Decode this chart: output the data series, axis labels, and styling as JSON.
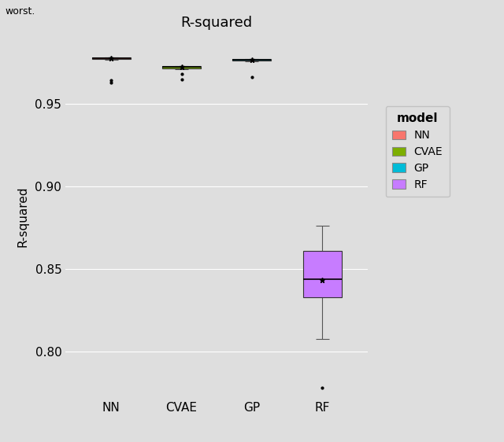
{
  "title": "R-squared",
  "ylabel": "R-squared",
  "xlabel": "",
  "background_color": "#DEDEDE",
  "grid_color": "#FFFFFF",
  "categories": [
    "NN",
    "CVAE",
    "GP",
    "RF"
  ],
  "models": {
    "NN": {
      "color": "#F8766D",
      "edge_color": "#333333",
      "median": 0.9775,
      "q1": 0.97725,
      "q3": 0.978,
      "whislo": 0.9768,
      "whishi": 0.9782,
      "fliers": [
        0.963,
        0.9645
      ],
      "mean": 0.9775
    },
    "CVAE": {
      "color": "#7CAE00",
      "edge_color": "#333333",
      "median": 0.97225,
      "q1": 0.9715,
      "q3": 0.97275,
      "whislo": 0.971,
      "whishi": 0.9731,
      "fliers": [
        0.9648,
        0.968
      ],
      "mean": 0.97225
    },
    "GP": {
      "color": "#00BCD8",
      "edge_color": "#333333",
      "median": 0.9765,
      "q1": 0.9762,
      "q3": 0.977,
      "whislo": 0.9758,
      "whishi": 0.9772,
      "fliers": [
        0.966
      ],
      "mean": 0.9766
    },
    "RF": {
      "color": "#C77CFF",
      "edge_color": "#333333",
      "median": 0.844,
      "q1": 0.833,
      "q3": 0.861,
      "whislo": 0.8075,
      "whishi": 0.876,
      "fliers": [
        0.778
      ],
      "mean": 0.8435
    }
  },
  "ylim": [
    0.772,
    0.9915
  ],
  "yticks": [
    0.8,
    0.85,
    0.9,
    0.95
  ],
  "box_width": 0.55,
  "legend_labels": [
    "NN",
    "CVAE",
    "GP",
    "RF"
  ],
  "legend_colors": [
    "#F8766D",
    "#7CAE00",
    "#00BCD8",
    "#C77CFF"
  ]
}
